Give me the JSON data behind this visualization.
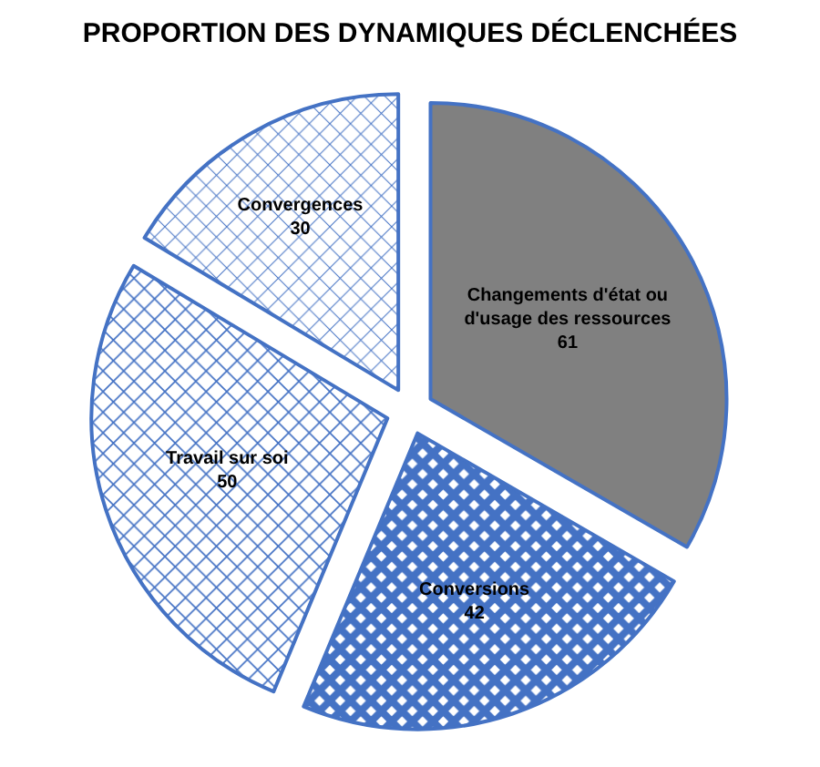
{
  "chart_data": {
    "type": "pie",
    "title": "PROPORTION DES DYNAMIQUES DÉCLENCHÉES",
    "categories": [
      "Changements d'état ou d'usage des ressources",
      "Conversions",
      "Travail sur soi",
      "Convergences"
    ],
    "values": [
      61,
      42,
      50,
      30
    ],
    "colors": [
      "#808080",
      "#4472c4",
      "#4472c4",
      "#4472c4"
    ],
    "data_labels": true,
    "legend": false
  }
}
